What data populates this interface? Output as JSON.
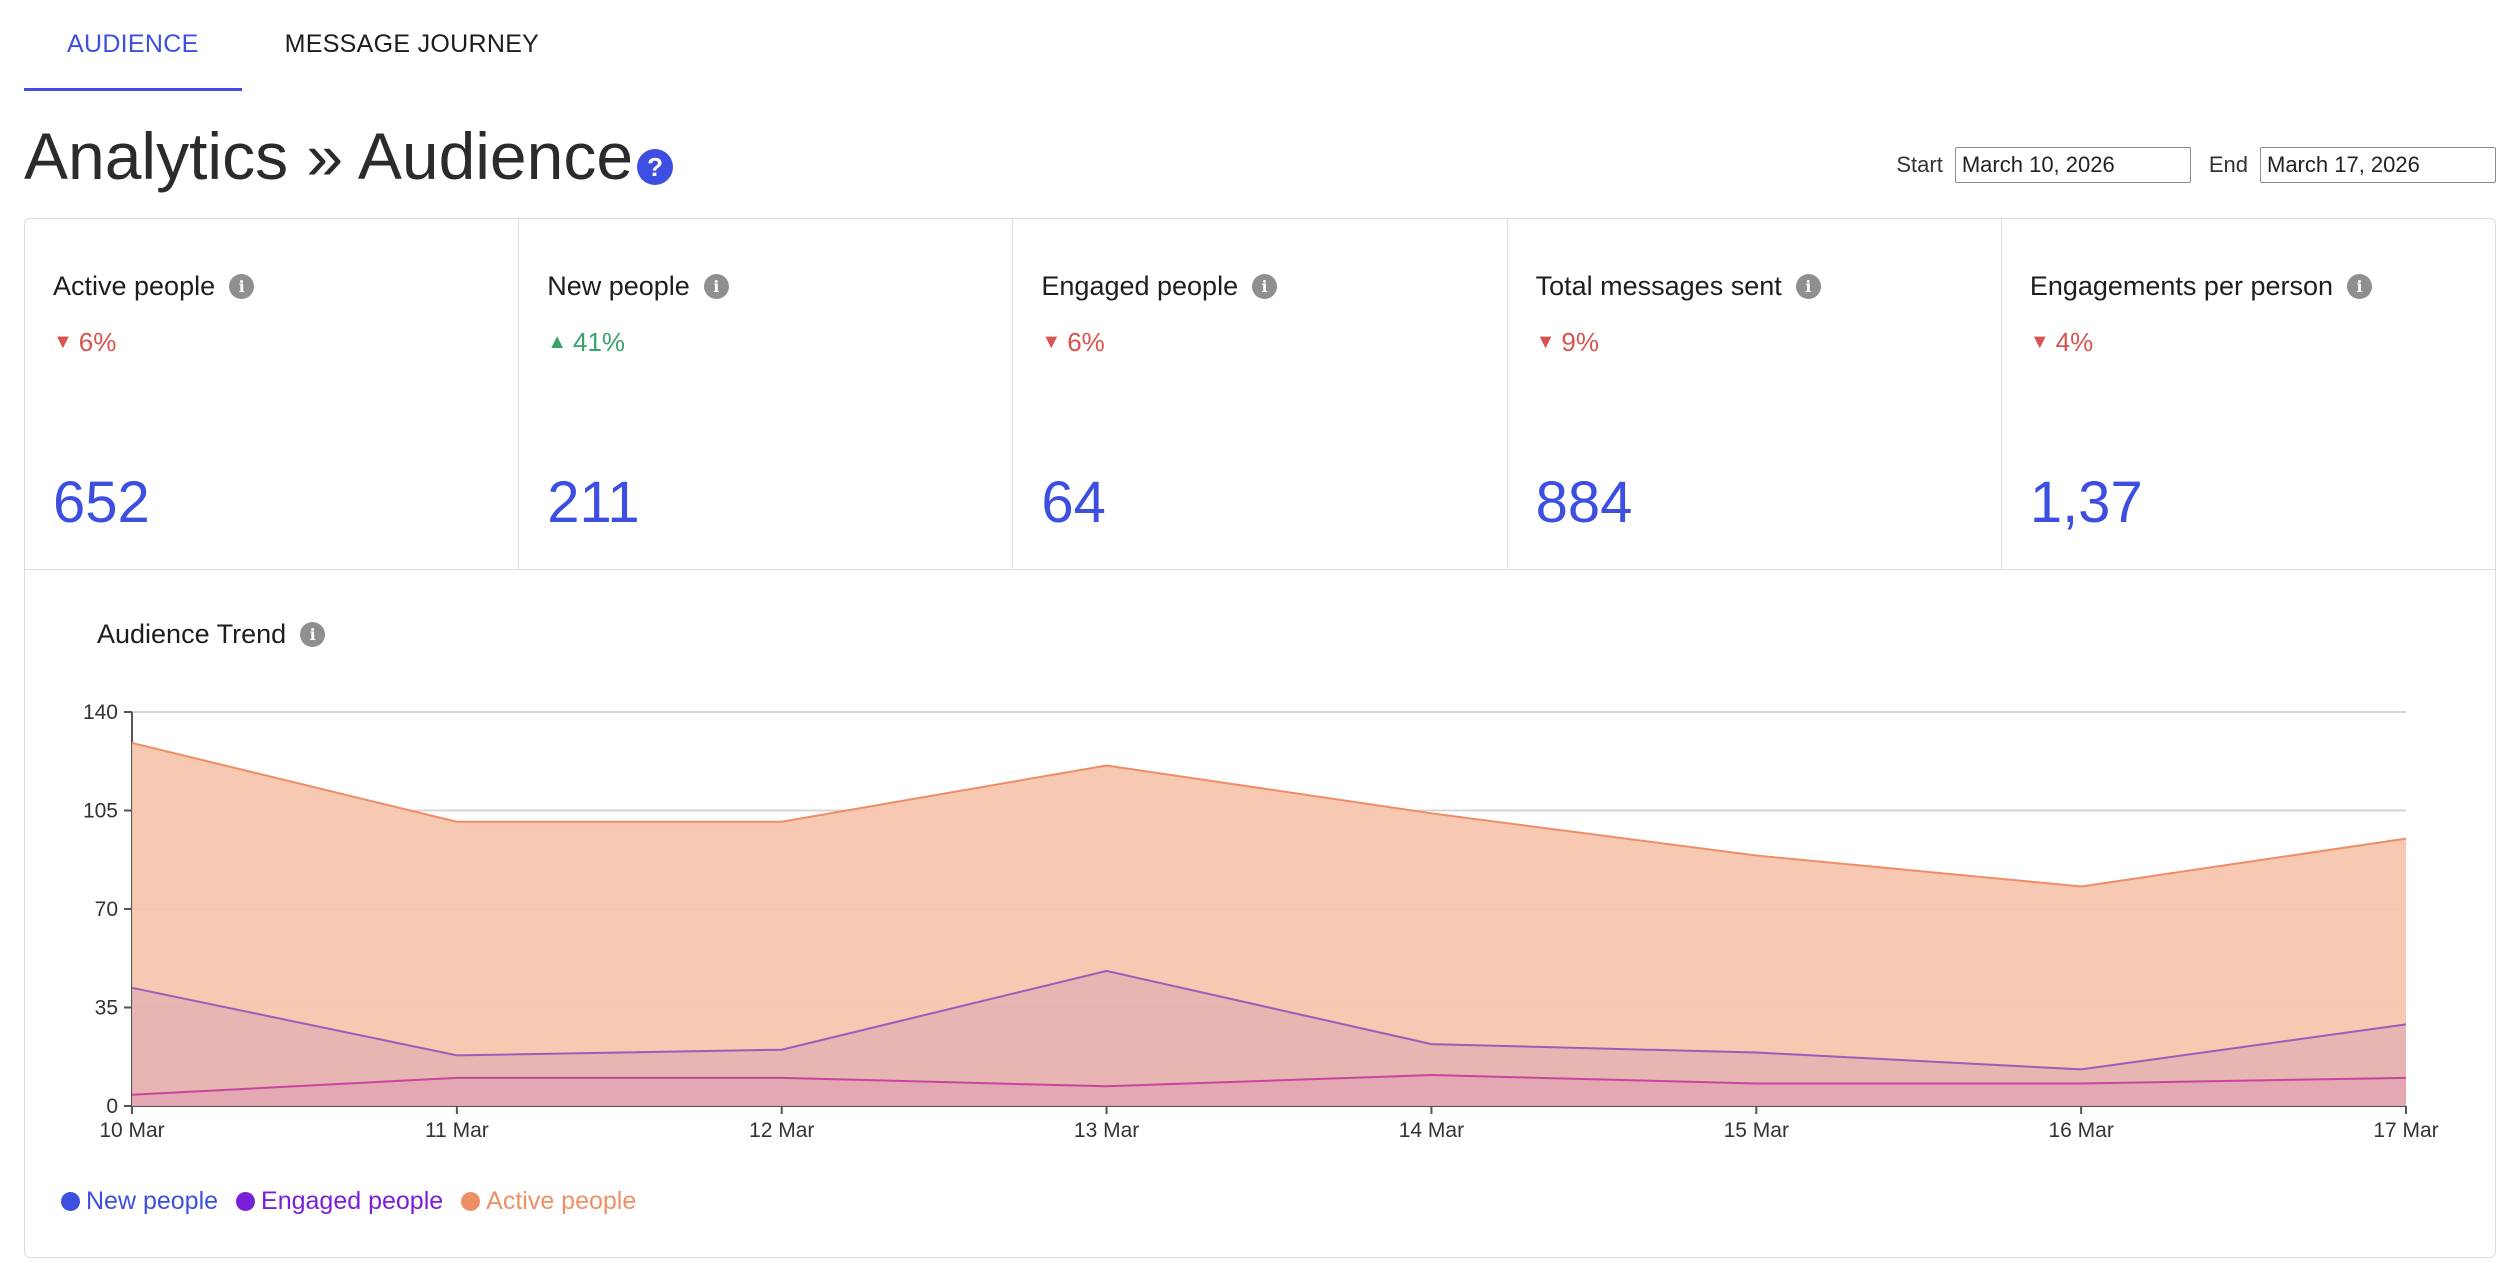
{
  "tabs": [
    {
      "label": "AUDIENCE",
      "active": true
    },
    {
      "label": "MESSAGE JOURNEY",
      "active": false
    }
  ],
  "header": {
    "title": "Analytics » Audience",
    "help_icon": "question-circle-icon"
  },
  "date_range": {
    "start_label": "Start",
    "start_value": "March 10, 2026",
    "end_label": "End",
    "end_value": "March 17, 2026"
  },
  "stats": [
    {
      "label": "Active people",
      "change": "6%",
      "direction": "down",
      "value": "652"
    },
    {
      "label": "New people",
      "change": "41%",
      "direction": "up",
      "value": "211"
    },
    {
      "label": "Engaged people",
      "change": "6%",
      "direction": "down",
      "value": "64"
    },
    {
      "label": "Total messages sent",
      "change": "9%",
      "direction": "down",
      "value": "884"
    },
    {
      "label": "Engagements per person",
      "change": "4%",
      "direction": "down",
      "value": "1,37"
    }
  ],
  "colors": {
    "accent": "#3d4fe0",
    "down": "#d9534f",
    "up": "#3aa26b",
    "active_fill": "#f7c6ae",
    "active_line": "#ee8d66",
    "engaged_line": "#9c5cb8",
    "new_line": "#c8459f"
  },
  "chart_title": "Audience Trend",
  "chart_data": {
    "type": "area",
    "title": "Audience Trend",
    "xlabel": "",
    "ylabel": "",
    "categories": [
      "10 Mar",
      "11 Mar",
      "12 Mar",
      "13 Mar",
      "14 Mar",
      "15 Mar",
      "16 Mar",
      "17 Mar"
    ],
    "y_ticks": [
      0,
      35,
      70,
      105,
      140
    ],
    "ylim": [
      0,
      140
    ],
    "grid": true,
    "legend_position": "bottom-left",
    "series": [
      {
        "name": "New people",
        "color": "#3d4fe0",
        "values": [
          4,
          10,
          10,
          7,
          11,
          8,
          8,
          10
        ]
      },
      {
        "name": "Engaged people",
        "color": "#7a1fd9",
        "values": [
          42,
          18,
          20,
          48,
          22,
          19,
          13,
          29
        ]
      },
      {
        "name": "Active people",
        "color": "#ee9066",
        "values": [
          129,
          101,
          101,
          121,
          104,
          89,
          78,
          95
        ]
      }
    ]
  }
}
